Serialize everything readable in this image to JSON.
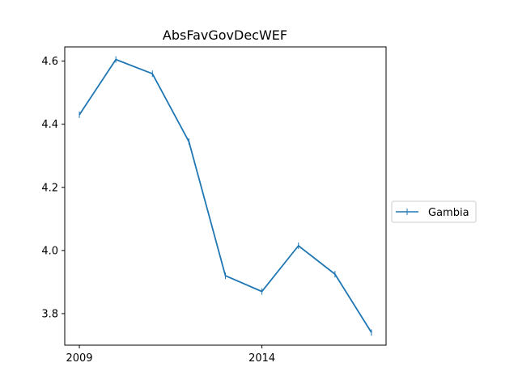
{
  "chart_data": {
    "type": "line",
    "title": "AbsFavGovDecWEF",
    "xlabel": "",
    "ylabel": "",
    "x": [
      2009,
      2010,
      2011,
      2012,
      2013,
      2014,
      2015,
      2016,
      2017
    ],
    "x_ticks": [
      2009,
      2014
    ],
    "x_tick_labels": [
      "2009",
      "2014"
    ],
    "xlim": [
      2008.6,
      2017.4
    ],
    "ylim": [
      3.7,
      4.645
    ],
    "y_ticks": [
      3.8,
      4.0,
      4.2,
      4.4,
      4.6
    ],
    "y_tick_labels": [
      "3.8",
      "4.0",
      "4.2",
      "4.4",
      "4.6"
    ],
    "series": [
      {
        "name": "Gambia",
        "color": "#1f77b4",
        "marker": "vertical-tick",
        "values": [
          4.43,
          4.605,
          4.56,
          4.345,
          3.92,
          3.87,
          4.015,
          3.925,
          3.74
        ]
      }
    ],
    "grid": false,
    "legend_position": "right"
  }
}
